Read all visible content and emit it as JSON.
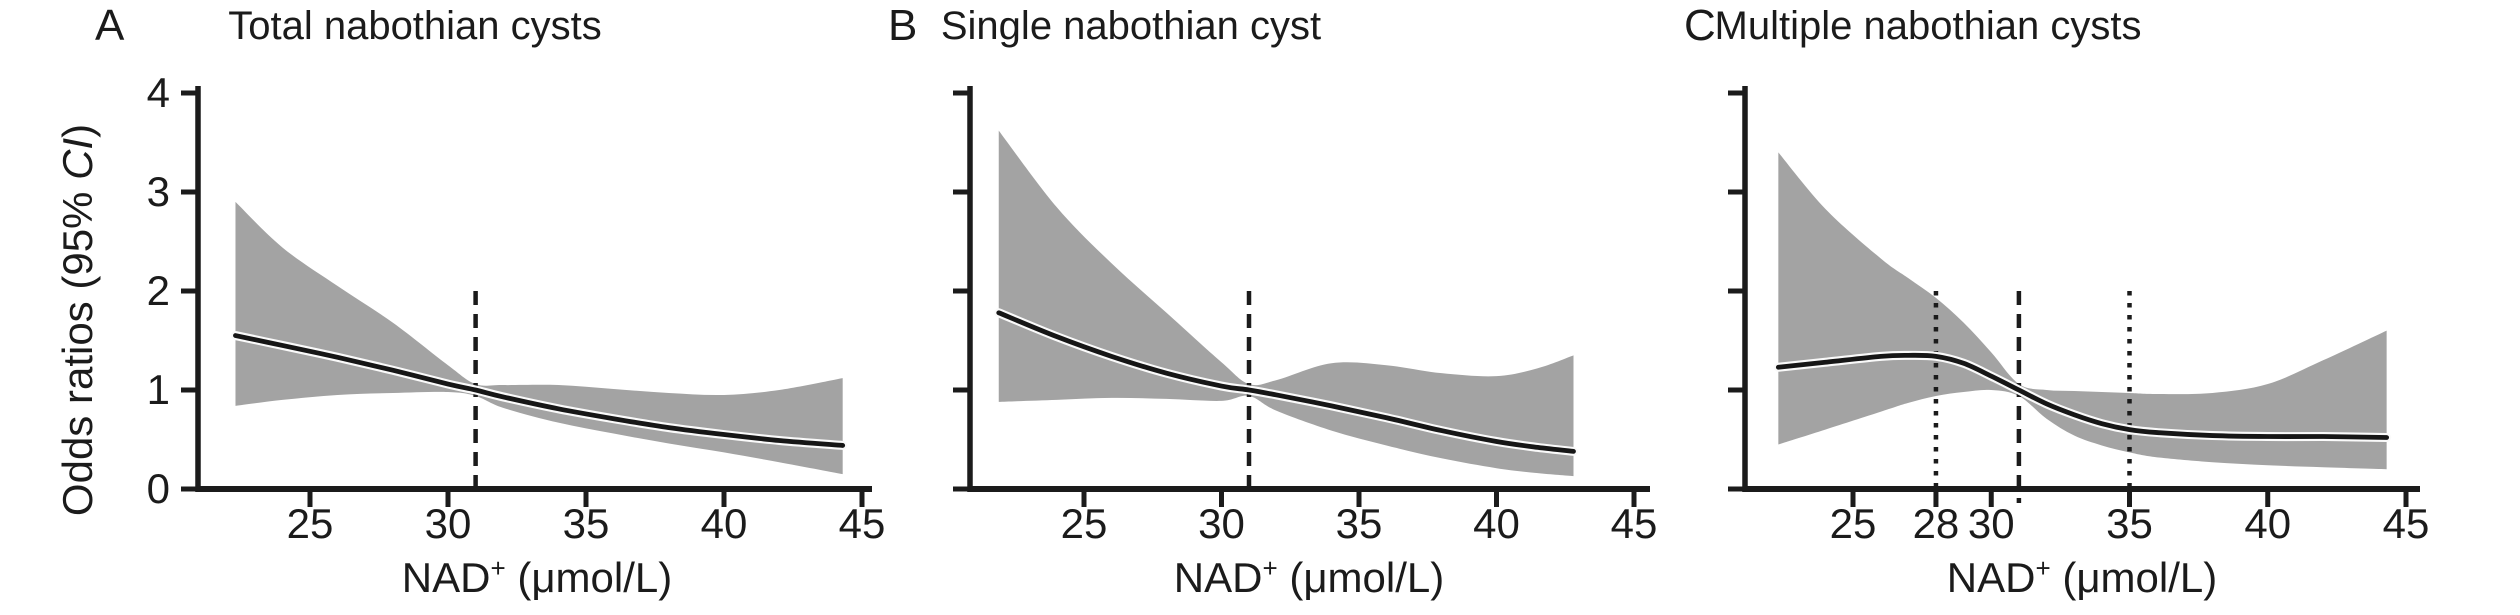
{
  "figure": {
    "background": "#ffffff",
    "ink_color": "#1b1b1b",
    "band_color": "#a3a3a3",
    "curve_color": "#161616",
    "curve_halo_color": "#fafafa",
    "ylabel": {
      "prefix": "Odds ratios (95% ",
      "italic": "CI",
      "suffix": ")"
    },
    "xlabel": {
      "base": "NAD",
      "sup": "+",
      "unit": " (μmol/L)"
    }
  },
  "chart_data": [
    {
      "type": "line",
      "panel_label": "A",
      "title": "Total nabothian cysts",
      "xlabel": "NAD+ (μmol/L)",
      "ylabel": "Odds ratios (95% CI)",
      "xlim": [
        21.5,
        45.8
      ],
      "ylim": [
        0,
        4
      ],
      "x_ticks": [
        25,
        30,
        35,
        40,
        45
      ],
      "y_ticks": [
        0,
        1,
        2,
        3,
        4
      ],
      "y_tick_labels_shown": true,
      "grid": false,
      "reference_lines": [
        {
          "x": 31,
          "style": "dashed"
        }
      ],
      "x": [
        22.3,
        24,
        26,
        28,
        30,
        31,
        32,
        34,
        36,
        38,
        40,
        42,
        44.3
      ],
      "series": [
        {
          "name": "odds_ratio",
          "values": [
            1.55,
            1.45,
            1.33,
            1.2,
            1.06,
            1.0,
            0.93,
            0.81,
            0.71,
            0.62,
            0.55,
            0.49,
            0.44
          ]
        },
        {
          "name": "ci_upper",
          "values": [
            2.9,
            2.44,
            2.05,
            1.68,
            1.25,
            1.06,
            1.05,
            1.05,
            1.01,
            0.97,
            0.95,
            1.0,
            1.12
          ]
        },
        {
          "name": "ci_lower",
          "values": [
            0.84,
            0.9,
            0.95,
            0.97,
            0.98,
            0.94,
            0.82,
            0.67,
            0.56,
            0.46,
            0.37,
            0.27,
            0.15
          ]
        }
      ]
    },
    {
      "type": "line",
      "panel_label": "B",
      "title": "Single nabothian cyst",
      "xlabel": "NAD+ (μmol/L)",
      "ylabel": "Odds ratios (95% CI)",
      "xlim": [
        21.5,
        45.8
      ],
      "ylim": [
        0,
        4
      ],
      "x_ticks": [
        25,
        30,
        35,
        40,
        45
      ],
      "y_ticks": [
        0,
        1,
        2,
        3,
        4
      ],
      "y_tick_labels_shown": false,
      "grid": false,
      "reference_lines": [
        {
          "x": 31,
          "style": "dashed"
        }
      ],
      "x": [
        21.9,
        24,
        26,
        28,
        30,
        31,
        32,
        34,
        36,
        38,
        40,
        41.5,
        42.8
      ],
      "series": [
        {
          "name": "odds_ratio",
          "values": [
            1.78,
            1.54,
            1.34,
            1.17,
            1.04,
            1.0,
            0.95,
            0.84,
            0.72,
            0.59,
            0.48,
            0.42,
            0.38
          ]
        },
        {
          "name": "ci_upper",
          "values": [
            3.62,
            2.85,
            2.28,
            1.78,
            1.28,
            1.06,
            1.1,
            1.27,
            1.25,
            1.17,
            1.14,
            1.22,
            1.35
          ]
        },
        {
          "name": "ci_lower",
          "values": [
            0.88,
            0.9,
            0.92,
            0.91,
            0.89,
            0.94,
            0.79,
            0.59,
            0.44,
            0.31,
            0.21,
            0.16,
            0.13
          ]
        }
      ]
    },
    {
      "type": "line",
      "panel_label": "C",
      "title": "Multiple nabothian cysts",
      "xlabel": "NAD+ (μmol/L)",
      "ylabel": "Odds ratios (95% CI)",
      "xlim": [
        21.5,
        45.8
      ],
      "ylim": [
        0,
        4
      ],
      "x_ticks": [
        25,
        28,
        30,
        35,
        40,
        45
      ],
      "y_ticks": [
        0,
        1,
        2,
        3,
        4
      ],
      "y_tick_labels_shown": false,
      "grid": false,
      "reference_lines": [
        {
          "x": 28,
          "style": "dotted"
        },
        {
          "x": 31,
          "style": "dashed"
        },
        {
          "x": 35,
          "style": "dotted"
        }
      ],
      "x": [
        22.3,
        24,
        26,
        27,
        28,
        29,
        30,
        31,
        32,
        33,
        34,
        35,
        36,
        38,
        40,
        42,
        44.3
      ],
      "series": [
        {
          "name": "odds_ratio",
          "values": [
            1.23,
            1.28,
            1.34,
            1.35,
            1.34,
            1.27,
            1.14,
            1.0,
            0.86,
            0.75,
            0.66,
            0.6,
            0.57,
            0.54,
            0.53,
            0.53,
            0.52
          ]
        },
        {
          "name": "ci_upper",
          "values": [
            3.4,
            2.83,
            2.33,
            2.13,
            1.93,
            1.68,
            1.38,
            1.06,
            1.0,
            0.99,
            0.98,
            0.97,
            0.96,
            0.97,
            1.06,
            1.3,
            1.6
          ]
        },
        {
          "name": "ci_lower",
          "values": [
            0.45,
            0.6,
            0.78,
            0.87,
            0.94,
            0.98,
            1.0,
            0.94,
            0.71,
            0.54,
            0.44,
            0.37,
            0.32,
            0.27,
            0.24,
            0.22,
            0.2
          ]
        }
      ]
    }
  ]
}
